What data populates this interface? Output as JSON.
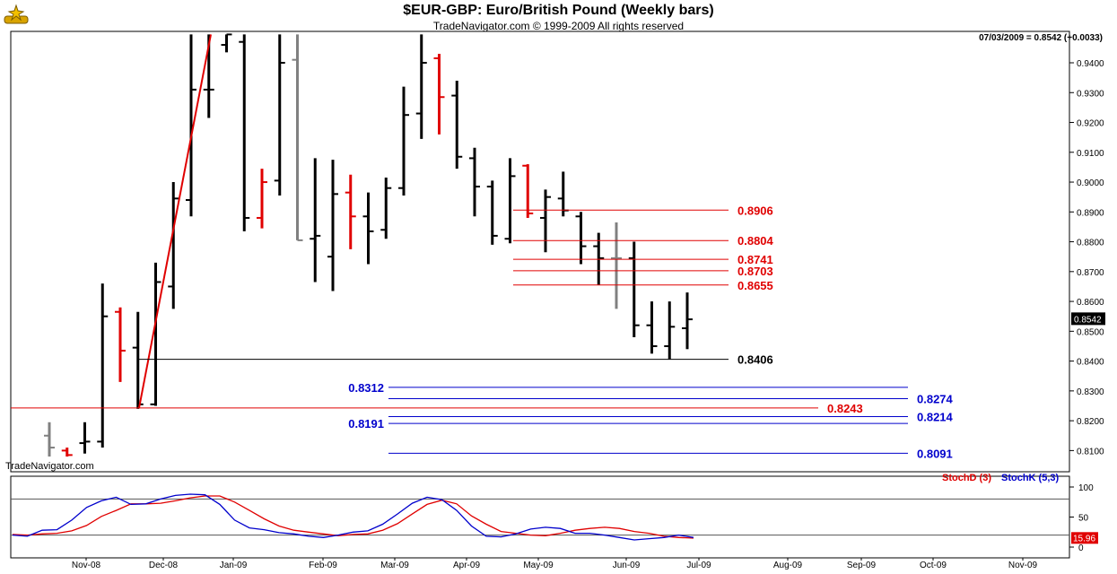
{
  "header": {
    "title": "$EUR-GBP:  Euro/British Pound  (Weekly bars)",
    "copyright": "TradeNavigator.com © 1999-2009 All rights reserved",
    "quote": "07/03/2009 = 0.8542 (+0.0033)",
    "watermark": "TradeNavigator.com"
  },
  "chart_data": [
    {
      "type": "ohlc",
      "title": "$EUR-GBP:  Euro/British Pound  (Weekly bars)",
      "ylim": [
        0.808,
        0.9495
      ],
      "y_ticks": [
        "0.8100",
        "0.8200",
        "0.8300",
        "0.8400",
        "0.8500",
        "0.8600",
        "0.8700",
        "0.8800",
        "0.8900",
        "0.9000",
        "0.9100",
        "0.9200",
        "0.9300",
        "0.9400"
      ],
      "x_labels": [
        "Nov-08",
        "Dec-08",
        "Jan-09",
        "Feb-09",
        "Mar-09",
        "Apr-09",
        "May-09",
        "Jun-09",
        "Jul-09",
        "Aug-09",
        "Sep-09",
        "Oct-09",
        "Nov-09"
      ],
      "last_price": "0.8542",
      "bars": [
        {
          "o": 0.815,
          "h": 0.8195,
          "l": 0.808,
          "c": 0.811,
          "color": "#808080"
        },
        {
          "o": 0.81,
          "h": 0.811,
          "l": 0.808,
          "c": 0.8085,
          "color": "#e00000"
        },
        {
          "o": 0.8125,
          "h": 0.8195,
          "l": 0.809,
          "c": 0.813,
          "color": "#000000"
        },
        {
          "o": 0.813,
          "h": 0.866,
          "l": 0.811,
          "c": 0.855,
          "color": "#000000"
        },
        {
          "o": 0.8565,
          "h": 0.858,
          "l": 0.833,
          "c": 0.8435,
          "color": "#e00000"
        },
        {
          "o": 0.8445,
          "h": 0.8565,
          "l": 0.824,
          "c": 0.8255,
          "color": "#000000"
        },
        {
          "o": 0.8255,
          "h": 0.873,
          "l": 0.825,
          "c": 0.8665,
          "color": "#000000"
        },
        {
          "o": 0.865,
          "h": 0.9,
          "l": 0.8575,
          "c": 0.8945,
          "color": "#000000"
        },
        {
          "o": 0.894,
          "h": 0.9495,
          "l": 0.8885,
          "c": 0.931,
          "color": "#000000"
        },
        {
          "o": 0.931,
          "h": 0.9495,
          "l": 0.9215,
          "c": 0.931,
          "color": "#000000"
        },
        {
          "o": 0.946,
          "h": 0.9495,
          "l": 0.9435,
          "c": 0.9495,
          "color": "#000000"
        },
        {
          "o": 0.947,
          "h": 0.9495,
          "l": 0.8835,
          "c": 0.888,
          "color": "#000000"
        },
        {
          "o": 0.888,
          "h": 0.9045,
          "l": 0.8845,
          "c": 0.9,
          "color": "#e00000"
        },
        {
          "o": 0.9005,
          "h": 0.9495,
          "l": 0.8955,
          "c": 0.94,
          "color": "#000000"
        },
        {
          "o": 0.941,
          "h": 0.9495,
          "l": 0.8805,
          "c": 0.8805,
          "color": "#808080"
        },
        {
          "o": 0.881,
          "h": 0.908,
          "l": 0.8665,
          "c": 0.882,
          "color": "#000000"
        },
        {
          "o": 0.875,
          "h": 0.9075,
          "l": 0.8635,
          "c": 0.896,
          "color": "#000000"
        },
        {
          "o": 0.8965,
          "h": 0.9025,
          "l": 0.8775,
          "c": 0.8885,
          "color": "#e00000"
        },
        {
          "o": 0.8885,
          "h": 0.8965,
          "l": 0.8725,
          "c": 0.8835,
          "color": "#000000"
        },
        {
          "o": 0.884,
          "h": 0.9015,
          "l": 0.881,
          "c": 0.898,
          "color": "#000000"
        },
        {
          "o": 0.898,
          "h": 0.932,
          "l": 0.8955,
          "c": 0.9225,
          "color": "#000000"
        },
        {
          "o": 0.923,
          "h": 0.9495,
          "l": 0.9145,
          "c": 0.94,
          "color": "#000000"
        },
        {
          "o": 0.9415,
          "h": 0.943,
          "l": 0.916,
          "c": 0.9285,
          "color": "#e00000"
        },
        {
          "o": 0.929,
          "h": 0.934,
          "l": 0.9045,
          "c": 0.9085,
          "color": "#000000"
        },
        {
          "o": 0.908,
          "h": 0.9115,
          "l": 0.8885,
          "c": 0.8985,
          "color": "#000000"
        },
        {
          "o": 0.8985,
          "h": 0.9005,
          "l": 0.879,
          "c": 0.882,
          "color": "#000000"
        },
        {
          "o": 0.881,
          "h": 0.908,
          "l": 0.8795,
          "c": 0.902,
          "color": "#000000"
        },
        {
          "o": 0.9055,
          "h": 0.906,
          "l": 0.888,
          "c": 0.8895,
          "color": "#e00000"
        },
        {
          "o": 0.888,
          "h": 0.8975,
          "l": 0.8765,
          "c": 0.895,
          "color": "#000000"
        },
        {
          "o": 0.8945,
          "h": 0.9035,
          "l": 0.8885,
          "c": 0.8905,
          "color": "#000000"
        },
        {
          "o": 0.8885,
          "h": 0.89,
          "l": 0.8725,
          "c": 0.8785,
          "color": "#000000"
        },
        {
          "o": 0.8785,
          "h": 0.883,
          "l": 0.8655,
          "c": 0.8745,
          "color": "#000000"
        },
        {
          "o": 0.8745,
          "h": 0.8865,
          "l": 0.8575,
          "c": 0.8745,
          "color": "#808080"
        },
        {
          "o": 0.8745,
          "h": 0.88,
          "l": 0.848,
          "c": 0.852,
          "color": "#000000"
        },
        {
          "o": 0.852,
          "h": 0.86,
          "l": 0.8425,
          "c": 0.845,
          "color": "#000000"
        },
        {
          "o": 0.845,
          "h": 0.86,
          "l": 0.8405,
          "c": 0.8515,
          "color": "#000000"
        },
        {
          "o": 0.851,
          "h": 0.863,
          "l": 0.844,
          "c": 0.854,
          "color": "#000000"
        }
      ],
      "annotations": [
        {
          "label": "0.8906",
          "value": 0.8906,
          "color": "#e00000"
        },
        {
          "label": "0.8804",
          "value": 0.8804,
          "color": "#e00000"
        },
        {
          "label": "0.8741",
          "value": 0.8741,
          "color": "#e00000"
        },
        {
          "label": "0.8703",
          "value": 0.8703,
          "color": "#e00000"
        },
        {
          "label": "0.8655",
          "value": 0.8655,
          "color": "#e00000"
        },
        {
          "label": "0.8406",
          "value": 0.8406,
          "color": "#000000"
        },
        {
          "label": "0.8312",
          "value": 0.8312,
          "color": "#0000cc"
        },
        {
          "label": "0.8274",
          "value": 0.8274,
          "color": "#0000cc"
        },
        {
          "label": "0.8243",
          "value": 0.8243,
          "color": "#e00000"
        },
        {
          "label": "0.8214",
          "value": 0.8214,
          "color": "#0000cc"
        },
        {
          "label": "0.8191",
          "value": 0.8191,
          "color": "#0000cc"
        },
        {
          "label": "0.8091",
          "value": 0.8091,
          "color": "#0000cc"
        }
      ]
    },
    {
      "type": "line",
      "ylim": [
        0,
        100
      ],
      "y_ticks": [
        "100",
        "50",
        "0"
      ],
      "reference_lines": [
        80,
        20
      ],
      "last_value": "15.96",
      "series": [
        {
          "name": "StochD (3)",
          "color": "#e00000",
          "values": [
            21,
            20,
            22,
            23,
            27,
            36,
            51,
            61,
            72,
            72,
            73,
            77,
            82,
            85,
            85,
            75,
            61,
            47,
            35,
            28,
            25,
            22,
            19,
            21,
            22,
            28,
            39,
            55,
            71,
            78,
            72,
            52,
            38,
            26,
            23,
            20,
            19,
            23,
            28,
            31,
            33,
            31,
            26,
            23,
            18,
            16,
            15
          ]
        },
        {
          "name": "StochK (5,3)",
          "color": "#0000cc",
          "values": [
            20,
            18,
            28,
            29,
            45,
            66,
            77,
            83,
            71,
            72,
            80,
            86,
            88,
            87,
            71,
            45,
            32,
            29,
            24,
            22,
            18,
            16,
            20,
            25,
            27,
            38,
            55,
            73,
            83,
            79,
            61,
            35,
            18,
            17,
            22,
            30,
            33,
            31,
            23,
            23,
            20,
            16,
            12,
            14,
            16,
            20,
            15.96
          ]
        }
      ]
    }
  ]
}
